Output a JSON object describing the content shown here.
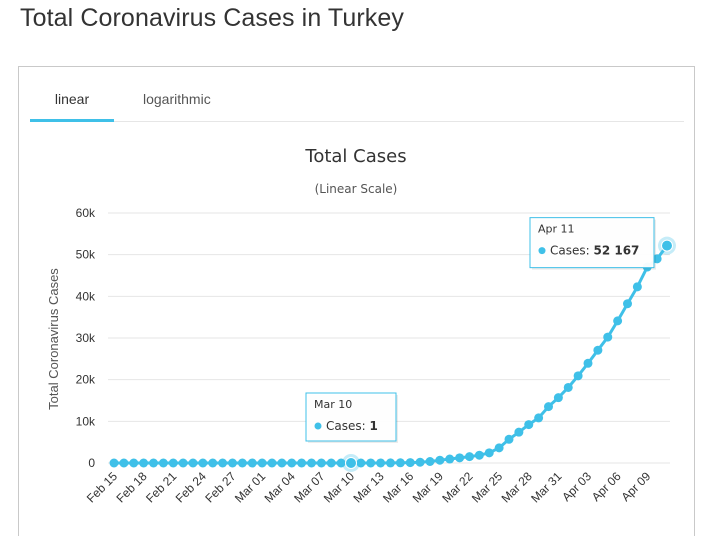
{
  "page": {
    "title": "Total Coronavirus Cases in Turkey"
  },
  "tabs": [
    {
      "label": "linear",
      "active": true
    },
    {
      "label": "logarithmic",
      "active": false
    }
  ],
  "colors": {
    "series": "#3fc0e8",
    "accent": "#3fc0e8",
    "grid": "#e6e6e6",
    "text": "#333333"
  },
  "chart_data": {
    "type": "line",
    "title": "Total Cases",
    "subtitle": "(Linear Scale)",
    "xlabel": "",
    "ylabel": "Total Coronavirus Cases",
    "ylim": [
      0,
      60000
    ],
    "yticks": [
      0,
      10000,
      20000,
      30000,
      40000,
      50000,
      60000
    ],
    "ytick_labels": [
      "0",
      "10k",
      "20k",
      "30k",
      "40k",
      "50k",
      "60k"
    ],
    "grid": true,
    "legend": "none",
    "x": [
      "Feb 15",
      "Feb 16",
      "Feb 17",
      "Feb 18",
      "Feb 19",
      "Feb 20",
      "Feb 21",
      "Feb 22",
      "Feb 23",
      "Feb 24",
      "Feb 25",
      "Feb 26",
      "Feb 27",
      "Feb 28",
      "Feb 29",
      "Mar 01",
      "Mar 02",
      "Mar 03",
      "Mar 04",
      "Mar 05",
      "Mar 06",
      "Mar 07",
      "Mar 08",
      "Mar 09",
      "Mar 10",
      "Mar 11",
      "Mar 12",
      "Mar 13",
      "Mar 14",
      "Mar 15",
      "Mar 16",
      "Mar 17",
      "Mar 18",
      "Mar 19",
      "Mar 20",
      "Mar 21",
      "Mar 22",
      "Mar 23",
      "Mar 24",
      "Mar 25",
      "Mar 26",
      "Mar 27",
      "Mar 28",
      "Mar 29",
      "Mar 30",
      "Mar 31",
      "Apr 01",
      "Apr 02",
      "Apr 03",
      "Apr 04",
      "Apr 05",
      "Apr 06",
      "Apr 07",
      "Apr 08",
      "Apr 09",
      "Apr 10",
      "Apr 11"
    ],
    "xtick_labels": [
      "Feb 15",
      "Feb 18",
      "Feb 21",
      "Feb 24",
      "Feb 27",
      "Mar 01",
      "Mar 04",
      "Mar 07",
      "Mar 10",
      "Mar 13",
      "Mar 16",
      "Mar 19",
      "Mar 22",
      "Mar 25",
      "Mar 28",
      "Mar 31",
      "Apr 03",
      "Apr 06",
      "Apr 09"
    ],
    "series": [
      {
        "name": "Cases",
        "values": [
          0,
          0,
          0,
          0,
          0,
          0,
          0,
          0,
          0,
          0,
          0,
          0,
          0,
          0,
          0,
          0,
          0,
          0,
          0,
          0,
          0,
          0,
          0,
          0,
          1,
          1,
          5,
          6,
          18,
          47,
          98,
          191,
          359,
          670,
          947,
          1236,
          1529,
          1872,
          2433,
          3629,
          5698,
          7402,
          9217,
          10827,
          13531,
          15679,
          18135,
          20921,
          23934,
          27069,
          30217,
          34109,
          38226,
          42282,
          47029,
          49000,
          52167
        ]
      }
    ],
    "tooltips": [
      {
        "date": "Mar 10",
        "series": "Cases",
        "value": "1"
      },
      {
        "date": "Apr 11",
        "series": "Cases",
        "value": "52 167"
      }
    ]
  }
}
